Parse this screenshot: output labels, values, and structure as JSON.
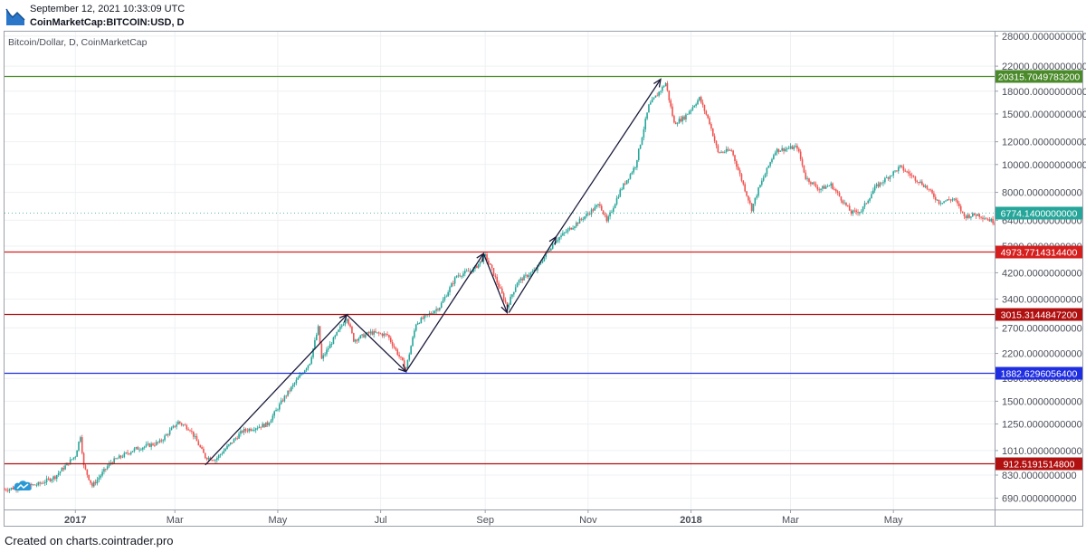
{
  "header": {
    "timestamp": "September 12, 2021 10:33:09 UTC",
    "symbol": "CoinMarketCap:BITCOIN:USD, D",
    "logo_icon": "tradingview-logo-icon"
  },
  "pane": {
    "title": "Bitcoin/Dollar, D, CoinMarketCap",
    "watermark_icon": "tradingview-cloud-icon"
  },
  "footer": {
    "credit": "Created on charts.cointrader.pro"
  },
  "chart_data": {
    "type": "candlestick",
    "title": "Bitcoin/Dollar, D, CoinMarketCap",
    "y_scale": "log",
    "ylim": [
      630,
      29000
    ],
    "x_range": [
      "2016-11-20",
      "2018-06-30"
    ],
    "y_ticks": [
      {
        "value": 28000,
        "label": "28000.0000000000"
      },
      {
        "value": 22000,
        "label": "22000.0000000000"
      },
      {
        "value": 18000,
        "label": "18000.0000000000"
      },
      {
        "value": 15000,
        "label": "15000.0000000000"
      },
      {
        "value": 12000,
        "label": "12000.0000000000"
      },
      {
        "value": 10000,
        "label": "10000.0000000000"
      },
      {
        "value": 8000,
        "label": "8000.0000000000"
      },
      {
        "value": 6400,
        "label": "6400.0000000000"
      },
      {
        "value": 5200,
        "label": "5200.0000000000"
      },
      {
        "value": 4200,
        "label": "4200.0000000000"
      },
      {
        "value": 3400,
        "label": "3400.0000000000"
      },
      {
        "value": 2700,
        "label": "2700.0000000000"
      },
      {
        "value": 2200,
        "label": "2200.0000000000"
      },
      {
        "value": 1800,
        "label": "1800.0000000000"
      },
      {
        "value": 1500,
        "label": "1500.0000000000"
      },
      {
        "value": 1250,
        "label": "1250.0000000000"
      },
      {
        "value": 1010,
        "label": "1010.0000000000"
      },
      {
        "value": 830,
        "label": "830.0000000000"
      },
      {
        "value": 690,
        "label": "690.0000000000"
      }
    ],
    "x_ticks": [
      {
        "date": "2017-01-01",
        "label": "2017",
        "bold": true
      },
      {
        "date": "2017-03-01",
        "label": "Mar",
        "bold": false
      },
      {
        "date": "2017-05-01",
        "label": "May",
        "bold": false
      },
      {
        "date": "2017-07-01",
        "label": "Jul",
        "bold": false
      },
      {
        "date": "2017-09-01",
        "label": "Sep",
        "bold": false
      },
      {
        "date": "2017-11-01",
        "label": "Nov",
        "bold": false
      },
      {
        "date": "2018-01-01",
        "label": "2018",
        "bold": true
      },
      {
        "date": "2018-03-01",
        "label": "Mar",
        "bold": false
      },
      {
        "date": "2018-05-01",
        "label": "May",
        "bold": false
      }
    ],
    "horizontal_lines": [
      {
        "value": 20315.70497832,
        "label": "20315.7049783200",
        "color": "#4a8a2a"
      },
      {
        "value": 4973.77143144,
        "label": "4973.7714314400",
        "color": "#d51f1f"
      },
      {
        "value": 3015.31448472,
        "label": "3015.3144847200",
        "color": "#b01010"
      },
      {
        "value": 1882.62960564,
        "label": "1882.6296056400",
        "color": "#1f2ee0"
      },
      {
        "value": 912.51915148,
        "label": "912.5191514800",
        "color": "#b01010"
      }
    ],
    "last_price": {
      "value": 6774.14,
      "label": "6774.1400000000",
      "color": "#26a69a"
    },
    "arrows": [
      {
        "from": {
          "date": "2017-03-19",
          "value": 900
        },
        "to": {
          "date": "2017-06-11",
          "value": 3000
        }
      },
      {
        "from": {
          "date": "2017-06-11",
          "value": 3000
        },
        "to": {
          "date": "2017-07-16",
          "value": 1900
        }
      },
      {
        "from": {
          "date": "2017-07-16",
          "value": 1900
        },
        "to": {
          "date": "2017-08-31",
          "value": 4900
        }
      },
      {
        "from": {
          "date": "2017-08-31",
          "value": 4900
        },
        "to": {
          "date": "2017-09-14",
          "value": 3050
        }
      },
      {
        "from": {
          "date": "2017-09-15",
          "value": 3050
        },
        "to": {
          "date": "2017-10-13",
          "value": 5600
        }
      },
      {
        "from": {
          "date": "2017-10-13",
          "value": 5600
        },
        "to": {
          "date": "2017-12-14",
          "value": 19800
        }
      }
    ],
    "price_path": [
      [
        "2016-11-20",
        740
      ],
      [
        "2016-12-10",
        770
      ],
      [
        "2016-12-20",
        820
      ],
      [
        "2017-01-01",
        970
      ],
      [
        "2017-01-04",
        1140
      ],
      [
        "2017-01-06",
        890
      ],
      [
        "2017-01-11",
        760
      ],
      [
        "2017-01-22",
        920
      ],
      [
        "2017-02-05",
        1020
      ],
      [
        "2017-02-20",
        1080
      ],
      [
        "2017-03-03",
        1270
      ],
      [
        "2017-03-10",
        1200
      ],
      [
        "2017-03-19",
        960
      ],
      [
        "2017-03-25",
        940
      ],
      [
        "2017-04-10",
        1180
      ],
      [
        "2017-04-25",
        1250
      ],
      [
        "2017-05-05",
        1550
      ],
      [
        "2017-05-20",
        2050
      ],
      [
        "2017-05-25",
        2700
      ],
      [
        "2017-05-27",
        2100
      ],
      [
        "2017-06-11",
        2950
      ],
      [
        "2017-06-15",
        2450
      ],
      [
        "2017-06-25",
        2600
      ],
      [
        "2017-07-05",
        2550
      ],
      [
        "2017-07-16",
        1950
      ],
      [
        "2017-07-22",
        2800
      ],
      [
        "2017-08-05",
        3200
      ],
      [
        "2017-08-15",
        4100
      ],
      [
        "2017-08-25",
        4300
      ],
      [
        "2017-09-01",
        4800
      ],
      [
        "2017-09-05",
        4300
      ],
      [
        "2017-09-14",
        3200
      ],
      [
        "2017-09-20",
        3900
      ],
      [
        "2017-10-01",
        4300
      ],
      [
        "2017-10-12",
        5400
      ],
      [
        "2017-10-20",
        5900
      ],
      [
        "2017-11-08",
        7300
      ],
      [
        "2017-11-12",
        6300
      ],
      [
        "2017-11-20",
        8100
      ],
      [
        "2017-11-29",
        9900
      ],
      [
        "2017-12-07",
        16000
      ],
      [
        "2017-12-17",
        19200
      ],
      [
        "2017-12-22",
        13900
      ],
      [
        "2017-12-28",
        14600
      ],
      [
        "2018-01-06",
        17000
      ],
      [
        "2018-01-12",
        14000
      ],
      [
        "2018-01-17",
        11000
      ],
      [
        "2018-01-25",
        11200
      ],
      [
        "2018-02-06",
        7000
      ],
      [
        "2018-02-10",
        8200
      ],
      [
        "2018-02-20",
        11200
      ],
      [
        "2018-03-05",
        11500
      ],
      [
        "2018-03-10",
        9000
      ],
      [
        "2018-03-18",
        8200
      ],
      [
        "2018-03-25",
        8500
      ],
      [
        "2018-04-06",
        6800
      ],
      [
        "2018-04-12",
        6900
      ],
      [
        "2018-04-20",
        8300
      ],
      [
        "2018-05-05",
        9800
      ],
      [
        "2018-05-10",
        9300
      ],
      [
        "2018-05-20",
        8400
      ],
      [
        "2018-05-28",
        7400
      ],
      [
        "2018-06-06",
        7600
      ],
      [
        "2018-06-12",
        6600
      ],
      [
        "2018-06-20",
        6700
      ],
      [
        "2018-06-30",
        6300
      ]
    ]
  }
}
